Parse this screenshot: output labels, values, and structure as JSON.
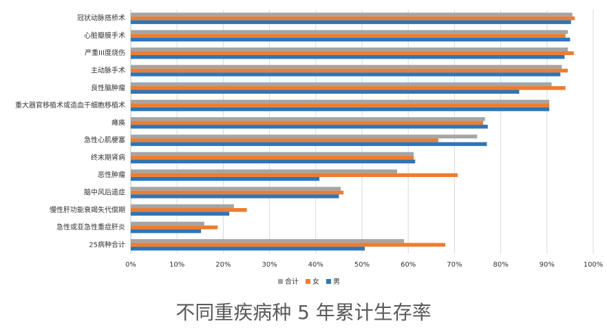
{
  "chart_data": {
    "type": "hbar",
    "title": "不同重疾病种 5 年累计生存率",
    "categories": [
      "冠状动脉搭桥术",
      "心脏瓣膜手术",
      "严重III度烧伤",
      "主动脉手术",
      "良性脑肿瘤",
      "重大器官移植术或造血干细胞移植术",
      "瘫痪",
      "急性心肌梗塞",
      "终末期肾病",
      "恶性肿瘤",
      "脑中风后遗症",
      "慢性肝功能衰竭失代偿期",
      "急性或亚急性重症肝炎",
      "25病种合计"
    ],
    "series": [
      {
        "name": "合计",
        "color": "#a5a5a5",
        "values": [
          95.5,
          94.5,
          94.5,
          93.2,
          91,
          90.5,
          76.6,
          74.9,
          61.2,
          57.6,
          45.4,
          22.3,
          15.9,
          59.1
        ]
      },
      {
        "name": "女",
        "color": "#ed7d31",
        "values": [
          96,
          94,
          95.8,
          94.5,
          94,
          90.5,
          76.2,
          66.5,
          61.2,
          70.7,
          46,
          25.1,
          18.8,
          68
        ]
      },
      {
        "name": "男",
        "color": "#2e75b6",
        "values": [
          95.2,
          95,
          93.8,
          92.9,
          84,
          90.5,
          77.2,
          77,
          61.5,
          40.8,
          45,
          21.3,
          15.2,
          50.6
        ]
      }
    ],
    "xlim": [
      0,
      100
    ],
    "xticks": [
      {
        "value": 0,
        "label": "0%"
      },
      {
        "value": 10,
        "label": "10%"
      },
      {
        "value": 20,
        "label": "20%"
      },
      {
        "value": 30,
        "label": "30%"
      },
      {
        "value": 40,
        "label": "40%"
      },
      {
        "value": 50,
        "label": "50%"
      },
      {
        "value": 60,
        "label": "60%"
      },
      {
        "value": 70,
        "label": "70%"
      },
      {
        "value": 80,
        "label": "80%"
      },
      {
        "value": 90,
        "label": "90%"
      },
      {
        "value": 100,
        "label": "100%"
      }
    ],
    "grid": true
  }
}
